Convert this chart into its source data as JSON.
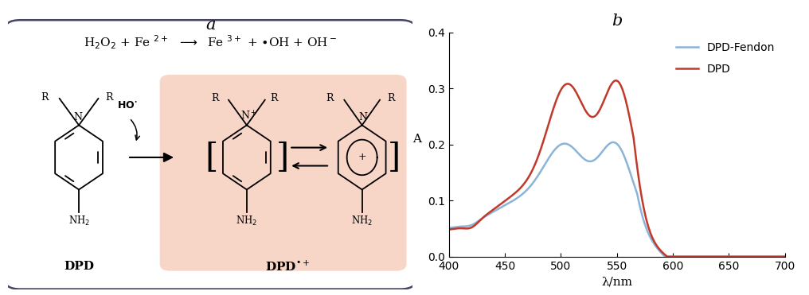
{
  "panel_b_title": "b",
  "panel_a_title": "a",
  "xlabel": "λ/nm",
  "ylabel": "A",
  "xlim": [
    400,
    700
  ],
  "ylim": [
    0,
    0.4
  ],
  "xticks": [
    400,
    450,
    500,
    550,
    600,
    650,
    700
  ],
  "yticks": [
    0,
    0.1,
    0.2,
    0.3,
    0.4
  ],
  "legend_labels": [
    "DPD-Fendon",
    "DPD"
  ],
  "blue_color": "#8ab4d8",
  "red_color": "#c0392b",
  "salmon_bg": "#f2b49a",
  "box_outline_color": "#444466"
}
